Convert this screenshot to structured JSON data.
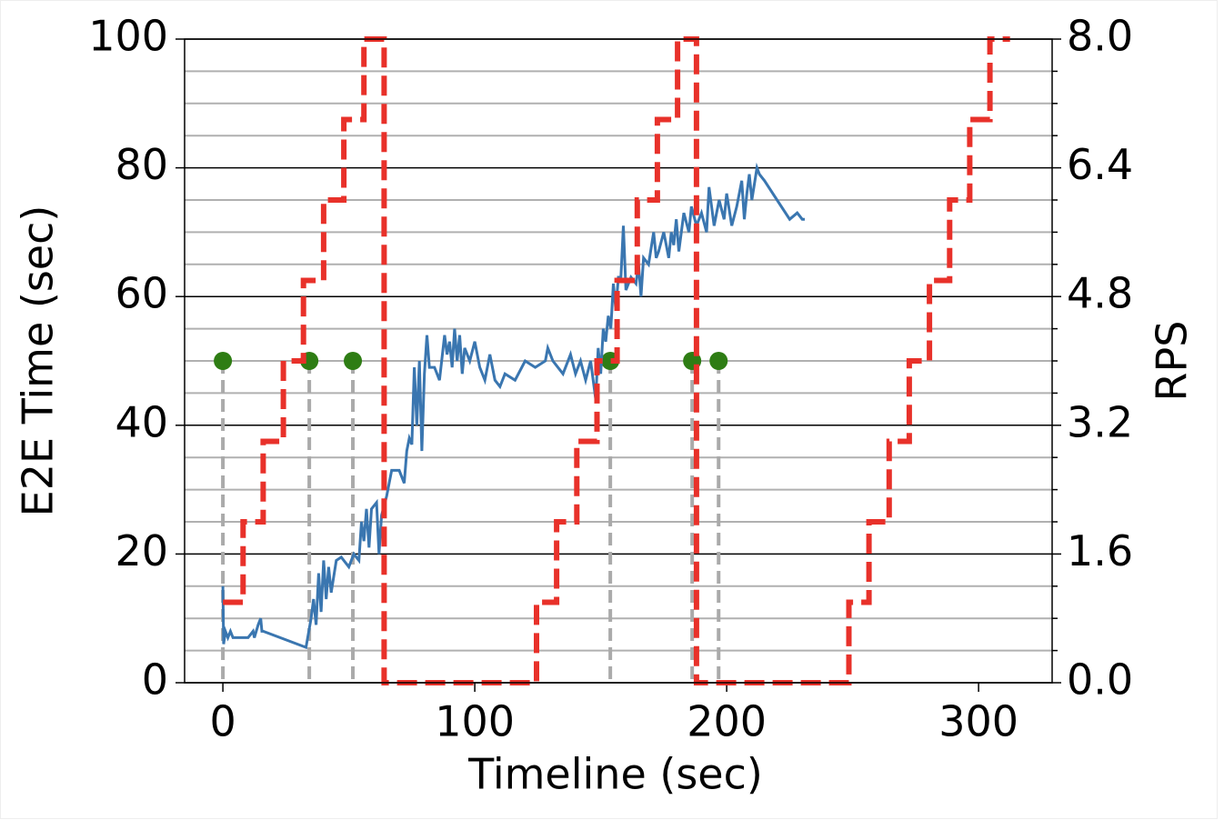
{
  "chart_data": {
    "type": "line",
    "xlabel": "Timeline (sec)",
    "ylabel": "E2E Time (sec)",
    "y2label": "RPS",
    "xlim": [
      -15.2,
      329.2
    ],
    "ylim": [
      0,
      100
    ],
    "y2lim": [
      0,
      8
    ],
    "xticks": [
      0,
      100,
      200,
      300
    ],
    "yticks": [
      0,
      20,
      40,
      60,
      80,
      100
    ],
    "y2ticks": [
      {
        "value": 0,
        "label": "0.0"
      },
      1.6,
      3.2,
      4.8,
      6.4,
      {
        "value": 8,
        "label": "8.0"
      }
    ],
    "y2minorticks": [
      0.4,
      0.8,
      1.2,
      2.0,
      2.4,
      2.8,
      3.6,
      4.0,
      4.4,
      5.2,
      5.6,
      6.0,
      6.8,
      7.2,
      7.6
    ],
    "grid": true,
    "series": [
      {
        "color": "#3a76b0",
        "style": "solid",
        "x": [
          0,
          0.3,
          1,
          2,
          3,
          4,
          5,
          10,
          12,
          12.5,
          14,
          15,
          15.5,
          16,
          33,
          35,
          36,
          37,
          38,
          39,
          40,
          41,
          42,
          43,
          45,
          47,
          50,
          52,
          54,
          55,
          56,
          57,
          58,
          59,
          61,
          62,
          63,
          65,
          67,
          70,
          72,
          73,
          74,
          75,
          76,
          77,
          78,
          79,
          80,
          81,
          82,
          84,
          86,
          88,
          89,
          90,
          91,
          92,
          93,
          94,
          95,
          96,
          98,
          100,
          102,
          104,
          106,
          108,
          110,
          112,
          116,
          120,
          124,
          128,
          129,
          131,
          135,
          138,
          140,
          142,
          144,
          146,
          148,
          149,
          150,
          151,
          152,
          153,
          154,
          155,
          156,
          157,
          158,
          159,
          160,
          162,
          164,
          165,
          166,
          167,
          169,
          171,
          172,
          173,
          175,
          177,
          178,
          179,
          180,
          181,
          183,
          185,
          186,
          188,
          190,
          192,
          193,
          195,
          197,
          199,
          200,
          202,
          204,
          206,
          207,
          208,
          209,
          210,
          212,
          213,
          215,
          220,
          225,
          228,
          230,
          231
        ],
        "values": [
          15,
          6,
          8,
          7,
          8,
          7,
          7,
          7,
          8,
          7,
          9,
          10,
          8,
          8,
          5.5,
          10,
          13,
          9,
          17,
          11,
          19,
          13,
          18,
          14,
          19,
          19.5,
          18,
          20,
          19,
          25,
          22,
          27,
          21,
          27,
          28,
          20,
          26,
          29,
          33,
          33,
          31,
          36,
          38,
          37,
          49,
          40,
          50,
          36,
          48,
          54,
          49,
          49,
          47,
          54,
          51,
          53,
          49,
          55,
          50,
          54,
          48,
          52,
          50,
          53,
          49,
          47,
          51,
          47,
          46,
          48,
          47,
          50,
          49,
          50,
          52,
          50,
          48,
          51,
          48,
          50,
          47,
          50,
          44,
          52,
          48,
          55,
          53,
          57,
          55,
          62,
          58,
          63,
          63,
          71,
          61,
          63,
          62,
          65,
          60,
          66,
          65,
          70,
          66,
          67,
          70,
          66,
          70,
          68,
          72,
          67,
          73,
          70,
          74,
          71,
          73,
          70,
          77,
          71,
          75,
          72,
          76,
          71,
          74,
          78,
          72,
          76,
          79,
          75,
          80,
          79,
          78,
          75,
          72,
          73,
          72,
          72
        ]
      },
      {
        "color": "#e8312a",
        "style": "dashed",
        "axis": "y2",
        "x": [
          0,
          8,
          8,
          16,
          16,
          24,
          24,
          32,
          32,
          40,
          40,
          48,
          48,
          56,
          56,
          64,
          64,
          124.5,
          124.5,
          132.5,
          132.5,
          140.5,
          140.5,
          148.5,
          148.5,
          156.5,
          156.5,
          164.5,
          164.5,
          172.5,
          172.5,
          180.5,
          180.5,
          188,
          188,
          248.5,
          248.5,
          256.5,
          256.5,
          264.5,
          264.5,
          272.5,
          272.5,
          280.5,
          280.5,
          288.5,
          288.5,
          296.5,
          296.5,
          304.5,
          304.5,
          312.5
        ],
        "values": [
          1,
          1,
          2,
          2,
          3,
          3,
          4,
          4,
          5,
          5,
          6,
          6,
          7,
          7,
          8,
          8,
          0,
          0,
          1,
          1,
          2,
          2,
          3,
          3,
          4,
          4,
          5,
          5,
          6,
          6,
          7,
          7,
          8,
          8,
          0,
          0,
          1,
          1,
          2,
          2,
          3,
          3,
          4,
          4,
          5,
          5,
          6,
          6,
          7,
          7,
          8,
          8
        ]
      },
      {
        "type": "scatter",
        "color": "#2e7d14",
        "droplines": "#aaaaaa",
        "x": [
          0,
          34.3,
          51.6,
          153.8,
          186.3,
          196.8
        ],
        "values": [
          50,
          50,
          50,
          50,
          50,
          50
        ]
      }
    ]
  }
}
